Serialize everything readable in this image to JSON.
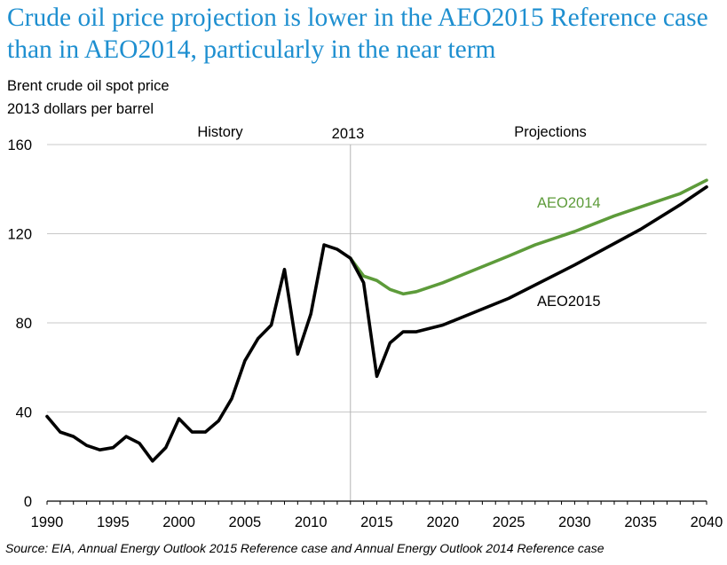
{
  "title": "Crude oil price projection is lower in the AEO2015 Reference case than in AEO2014, particularly in the near term",
  "subtitle_line1": "Brent crude oil spot price",
  "subtitle_line2": "2013 dollars per barrel",
  "source": "Source:  EIA, Annual Energy Outlook 2015 Reference case and Annual Energy Outlook 2014 Reference case",
  "annotations": {
    "history": "History",
    "year_marker": "2013",
    "projections": "Projections"
  },
  "colors": {
    "title": "#1e8fd0",
    "aeo2014": "#5d9b3a",
    "aeo2015": "#000000",
    "gridline": "#c8c8c8",
    "divider": "#b4b4b4"
  },
  "chart_data": {
    "type": "line",
    "xlim": [
      1990,
      2040
    ],
    "ylim": [
      0,
      160
    ],
    "xticks": [
      1990,
      1995,
      2000,
      2005,
      2010,
      2015,
      2020,
      2025,
      2030,
      2035,
      2040
    ],
    "yticks": [
      0,
      40,
      80,
      120,
      160
    ],
    "grid": "horizontal",
    "divider_x": 2013,
    "series": [
      {
        "name": "AEO2015",
        "color": "#000000",
        "points": [
          [
            1990,
            38
          ],
          [
            1991,
            31
          ],
          [
            1992,
            29
          ],
          [
            1993,
            25
          ],
          [
            1994,
            23
          ],
          [
            1995,
            24
          ],
          [
            1996,
            29
          ],
          [
            1997,
            26
          ],
          [
            1998,
            18
          ],
          [
            1999,
            24
          ],
          [
            2000,
            37
          ],
          [
            2001,
            31
          ],
          [
            2002,
            31
          ],
          [
            2003,
            36
          ],
          [
            2004,
            46
          ],
          [
            2005,
            63
          ],
          [
            2006,
            73
          ],
          [
            2007,
            79
          ],
          [
            2008,
            104
          ],
          [
            2009,
            66
          ],
          [
            2010,
            84
          ],
          [
            2011,
            115
          ],
          [
            2012,
            113
          ],
          [
            2013,
            109
          ],
          [
            2014,
            98
          ],
          [
            2015,
            56
          ],
          [
            2016,
            71
          ],
          [
            2017,
            76
          ],
          [
            2018,
            76
          ],
          [
            2020,
            79
          ],
          [
            2025,
            91
          ],
          [
            2030,
            106
          ],
          [
            2035,
            122
          ],
          [
            2038,
            133
          ],
          [
            2040,
            141
          ]
        ]
      },
      {
        "name": "AEO2014",
        "color": "#5d9b3a",
        "points": [
          [
            2013,
            109
          ],
          [
            2014,
            101
          ],
          [
            2015,
            99
          ],
          [
            2016,
            95
          ],
          [
            2017,
            93
          ],
          [
            2018,
            94
          ],
          [
            2020,
            98
          ],
          [
            2025,
            110
          ],
          [
            2027,
            115
          ],
          [
            2030,
            121
          ],
          [
            2033,
            128
          ],
          [
            2035,
            132
          ],
          [
            2038,
            138
          ],
          [
            2040,
            144
          ]
        ]
      }
    ]
  }
}
